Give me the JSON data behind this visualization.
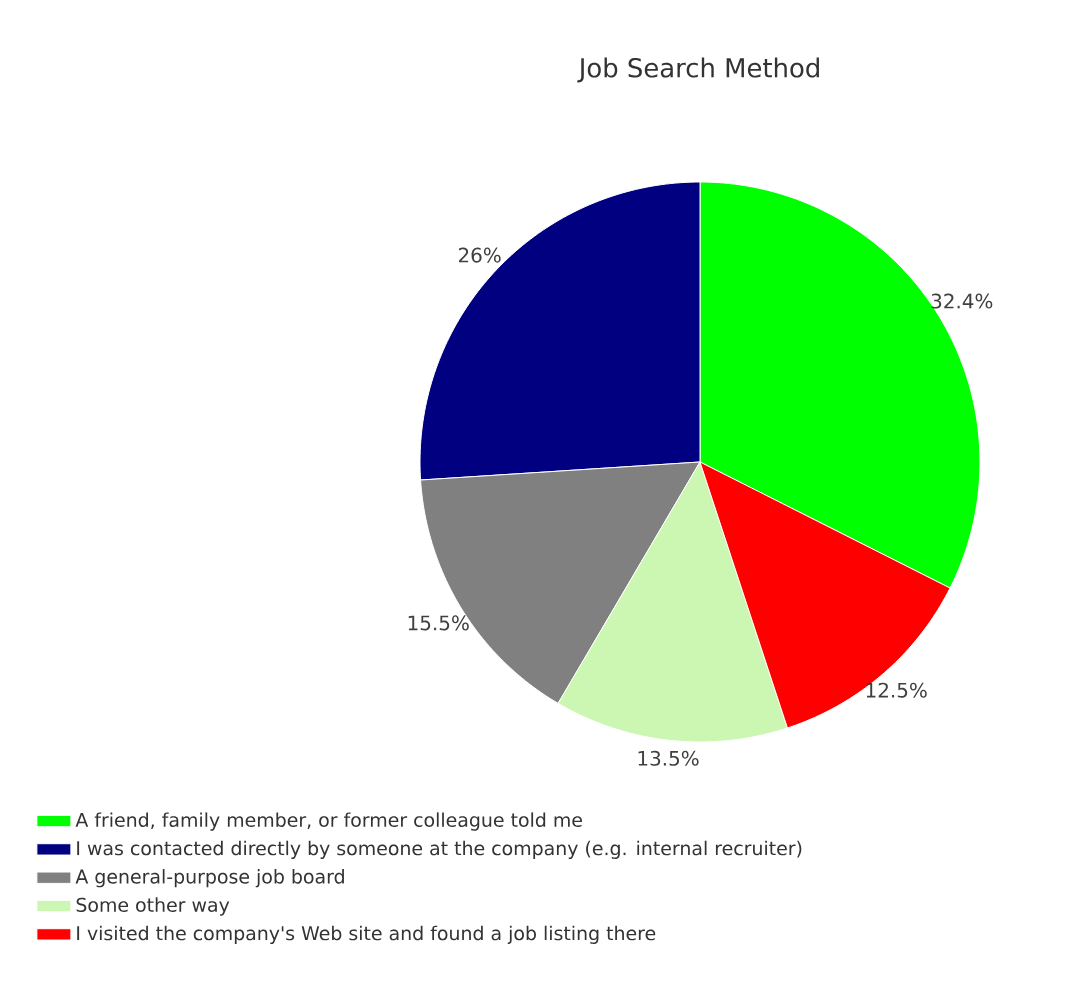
{
  "chart_data": {
    "type": "pie",
    "title": "Job Search Method",
    "categories": [
      "A friend, family member, or former colleague told me",
      "I was contacted directly by someone at the company (e.g. internal recruiter)",
      "A general-purpose job board",
      "Some other way",
      "I visited the company's Web site and found a job listing there"
    ],
    "values": [
      32.4,
      26,
      15.5,
      13.5,
      12.5
    ],
    "value_labels": [
      "32.4%",
      "26%",
      "15.5%",
      "13.5%",
      "12.5%"
    ],
    "colors": [
      "#00ff00",
      "#000080",
      "#808080",
      "#ccf7b3",
      "#ff0000"
    ],
    "legend": "bottom"
  }
}
